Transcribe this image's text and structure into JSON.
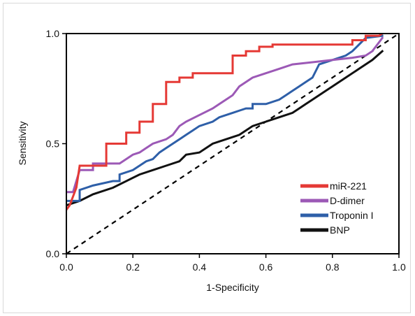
{
  "chart_data": {
    "type": "line",
    "xlabel": "1-Specificity",
    "ylabel": "Sensitivity",
    "xlim": [
      0.0,
      1.0
    ],
    "ylim": [
      0.0,
      1.0
    ],
    "x_ticks": [
      "0.0",
      "0.2",
      "0.4",
      "0.6",
      "0.8",
      "1.0"
    ],
    "y_ticks": [
      "0.0",
      "0.5",
      "1.0"
    ],
    "legend_position": "bottom-right",
    "reference_line": {
      "style": "dashed",
      "color": "#000000",
      "points": [
        [
          0.0,
          0.0
        ],
        [
          1.0,
          1.0
        ]
      ]
    },
    "series": [
      {
        "name": "miR-221",
        "color": "#e53935",
        "points": [
          [
            0.0,
            0.2
          ],
          [
            0.01,
            0.22
          ],
          [
            0.03,
            0.3
          ],
          [
            0.04,
            0.4
          ],
          [
            0.12,
            0.4
          ],
          [
            0.12,
            0.5
          ],
          [
            0.18,
            0.5
          ],
          [
            0.18,
            0.55
          ],
          [
            0.22,
            0.55
          ],
          [
            0.22,
            0.6
          ],
          [
            0.26,
            0.6
          ],
          [
            0.26,
            0.68
          ],
          [
            0.3,
            0.68
          ],
          [
            0.3,
            0.78
          ],
          [
            0.34,
            0.78
          ],
          [
            0.34,
            0.8
          ],
          [
            0.38,
            0.8
          ],
          [
            0.38,
            0.82
          ],
          [
            0.5,
            0.82
          ],
          [
            0.5,
            0.9
          ],
          [
            0.54,
            0.9
          ],
          [
            0.54,
            0.92
          ],
          [
            0.58,
            0.92
          ],
          [
            0.58,
            0.94
          ],
          [
            0.62,
            0.94
          ],
          [
            0.62,
            0.95
          ],
          [
            0.86,
            0.95
          ],
          [
            0.86,
            0.97
          ],
          [
            0.9,
            0.97
          ],
          [
            0.9,
            0.99
          ],
          [
            0.94,
            0.99
          ],
          [
            0.95,
            1.0
          ]
        ]
      },
      {
        "name": "D-dimer",
        "color": "#9c59b6",
        "points": [
          [
            0.0,
            0.28
          ],
          [
            0.02,
            0.28
          ],
          [
            0.04,
            0.38
          ],
          [
            0.08,
            0.38
          ],
          [
            0.08,
            0.41
          ],
          [
            0.16,
            0.41
          ],
          [
            0.2,
            0.45
          ],
          [
            0.22,
            0.46
          ],
          [
            0.24,
            0.48
          ],
          [
            0.26,
            0.5
          ],
          [
            0.3,
            0.52
          ],
          [
            0.32,
            0.54
          ],
          [
            0.34,
            0.58
          ],
          [
            0.36,
            0.6
          ],
          [
            0.4,
            0.63
          ],
          [
            0.44,
            0.66
          ],
          [
            0.46,
            0.68
          ],
          [
            0.48,
            0.7
          ],
          [
            0.5,
            0.72
          ],
          [
            0.52,
            0.76
          ],
          [
            0.56,
            0.8
          ],
          [
            0.6,
            0.82
          ],
          [
            0.64,
            0.84
          ],
          [
            0.68,
            0.86
          ],
          [
            0.74,
            0.87
          ],
          [
            0.8,
            0.88
          ],
          [
            0.86,
            0.89
          ],
          [
            0.9,
            0.9
          ],
          [
            0.92,
            0.92
          ],
          [
            0.94,
            0.96
          ],
          [
            0.95,
            0.98
          ]
        ]
      },
      {
        "name": "Troponin I",
        "color": "#2e5fa8",
        "points": [
          [
            0.0,
            0.24
          ],
          [
            0.04,
            0.24
          ],
          [
            0.04,
            0.29
          ],
          [
            0.08,
            0.31
          ],
          [
            0.14,
            0.33
          ],
          [
            0.16,
            0.33
          ],
          [
            0.16,
            0.36
          ],
          [
            0.2,
            0.38
          ],
          [
            0.22,
            0.4
          ],
          [
            0.24,
            0.42
          ],
          [
            0.26,
            0.43
          ],
          [
            0.28,
            0.46
          ],
          [
            0.3,
            0.48
          ],
          [
            0.32,
            0.5
          ],
          [
            0.34,
            0.52
          ],
          [
            0.36,
            0.54
          ],
          [
            0.38,
            0.56
          ],
          [
            0.4,
            0.58
          ],
          [
            0.44,
            0.6
          ],
          [
            0.46,
            0.62
          ],
          [
            0.5,
            0.64
          ],
          [
            0.52,
            0.65
          ],
          [
            0.54,
            0.66
          ],
          [
            0.56,
            0.66
          ],
          [
            0.56,
            0.68
          ],
          [
            0.6,
            0.68
          ],
          [
            0.64,
            0.7
          ],
          [
            0.66,
            0.72
          ],
          [
            0.68,
            0.74
          ],
          [
            0.7,
            0.76
          ],
          [
            0.72,
            0.78
          ],
          [
            0.74,
            0.8
          ],
          [
            0.76,
            0.86
          ],
          [
            0.78,
            0.87
          ],
          [
            0.84,
            0.9
          ],
          [
            0.86,
            0.92
          ],
          [
            0.88,
            0.95
          ],
          [
            0.9,
            0.98
          ],
          [
            0.95,
            0.99
          ]
        ]
      },
      {
        "name": "BNP",
        "color": "#111111",
        "points": [
          [
            0.0,
            0.22
          ],
          [
            0.04,
            0.24
          ],
          [
            0.08,
            0.27
          ],
          [
            0.14,
            0.3
          ],
          [
            0.18,
            0.33
          ],
          [
            0.22,
            0.36
          ],
          [
            0.26,
            0.38
          ],
          [
            0.3,
            0.4
          ],
          [
            0.34,
            0.42
          ],
          [
            0.36,
            0.45
          ],
          [
            0.4,
            0.46
          ],
          [
            0.44,
            0.5
          ],
          [
            0.48,
            0.52
          ],
          [
            0.52,
            0.54
          ],
          [
            0.56,
            0.58
          ],
          [
            0.6,
            0.6
          ],
          [
            0.64,
            0.62
          ],
          [
            0.68,
            0.64
          ],
          [
            0.7,
            0.66
          ],
          [
            0.72,
            0.68
          ],
          [
            0.74,
            0.7
          ],
          [
            0.78,
            0.74
          ],
          [
            0.8,
            0.76
          ],
          [
            0.84,
            0.8
          ],
          [
            0.88,
            0.84
          ],
          [
            0.92,
            0.88
          ],
          [
            0.95,
            0.92
          ]
        ]
      }
    ]
  }
}
